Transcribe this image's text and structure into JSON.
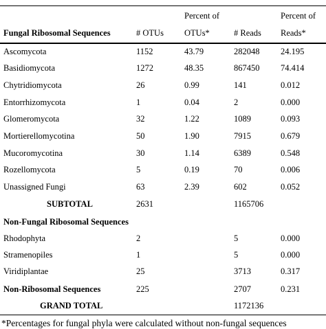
{
  "table": {
    "header": [
      [
        "Fungal Ribosomal Sequences",
        "# OTUs",
        "Percent of OTUs*",
        "# Reads",
        "Percent of Reads*"
      ]
    ],
    "header_top": [
      "Percent of",
      "Percent of"
    ],
    "header_bottom": [
      "Fungal Ribosomal Sequences",
      "# OTUs",
      "OTUs*",
      "# Reads",
      "Reads*"
    ],
    "rows": [
      [
        "Ascomycota",
        "1152",
        "43.79",
        "282048",
        "24.195"
      ],
      [
        "Basidiomycota",
        "1272",
        "48.35",
        "867450",
        "74.414"
      ],
      [
        "Chytridiomycota",
        "26",
        "0.99",
        "141",
        "0.012"
      ],
      [
        "Entorrhizomycota",
        "1",
        "0.04",
        "2",
        "0.000"
      ],
      [
        "Glomeromycota",
        "32",
        "1.22",
        "1089",
        "0.093"
      ],
      [
        "Mortierellomycotina",
        "50",
        "1.90",
        "7915",
        "0.679"
      ],
      [
        "Mucoromycotina",
        "30",
        "1.14",
        "6389",
        "0.548"
      ],
      [
        "Rozellomycota",
        "5",
        "0.19",
        "70",
        "0.006"
      ],
      [
        "Unassigned Fungi",
        "63",
        "2.39",
        "602",
        "0.052"
      ],
      [
        "SUBTOTAL",
        "2631",
        null,
        "1165706",
        null
      ],
      [
        "Non-Fungal Ribosomal Sequences",
        null,
        null,
        null,
        null
      ],
      [
        "Rhodophyta",
        "2",
        null,
        "5",
        "0.000"
      ],
      [
        "Stramenopiles",
        "1",
        null,
        "5",
        "0.000"
      ],
      [
        "Viridiplantae",
        "25",
        null,
        "3713",
        "0.317"
      ],
      [
        "Non-Ribosomal Sequences",
        "225",
        null,
        "2707",
        "0.231"
      ],
      [
        "GRAND TOTAL",
        null,
        null,
        "1172136",
        null
      ]
    ],
    "footnote": "*Percentages for fungal phyla were calculated without non-fungal sequences"
  }
}
